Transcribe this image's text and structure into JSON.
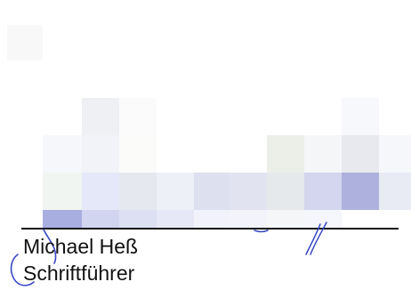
{
  "document": {
    "signer_name": "Michael Heß",
    "signer_title": "Schriftführer",
    "signature_ink_color": "#2f3fb3",
    "text_color": "#111111",
    "rule_color": "#111111"
  }
}
